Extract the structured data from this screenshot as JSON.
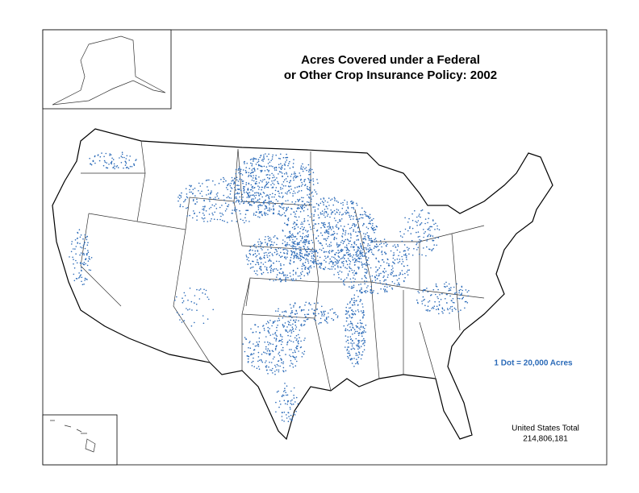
{
  "title": [
    "Acres Covered under a Federal",
    "or Other Crop Insurance Policy:  2002"
  ],
  "legend": "1 Dot = 20,000 Acres",
  "total": {
    "label": "United States Total",
    "value": "214,806,181"
  }
}
